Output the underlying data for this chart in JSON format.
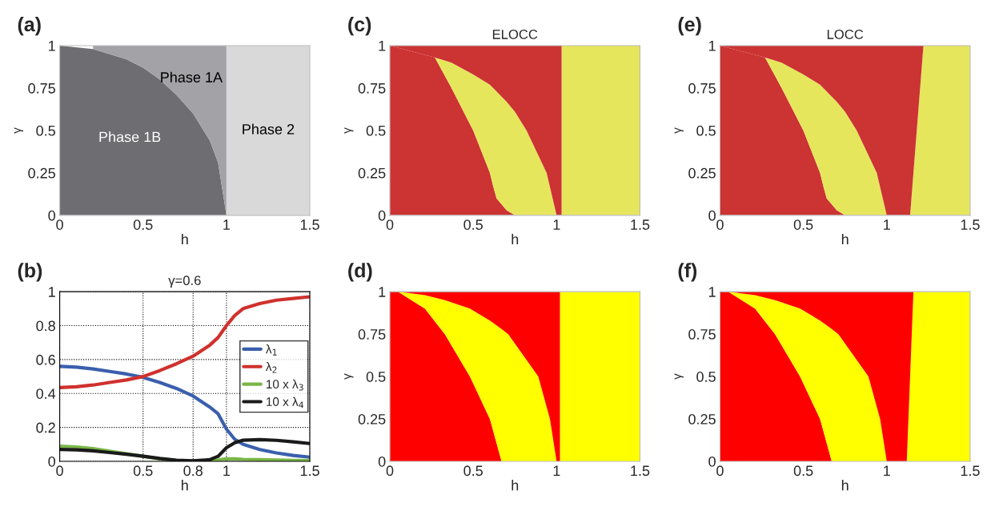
{
  "chart_data": [
    {
      "type": "area",
      "stacked": true,
      "annotations": [
        "(a)"
      ],
      "xlabel": "h",
      "ylabel": "γ",
      "xlim": [
        0,
        1.5
      ],
      "ylim": [
        0,
        1
      ],
      "xticks": [
        0,
        0.5,
        1,
        1.5
      ],
      "yticks": [
        0,
        0.25,
        0.5,
        0.75,
        1
      ],
      "grid": false,
      "legend": false,
      "x": [
        0,
        0.2,
        0.4,
        0.5,
        0.6,
        0.7,
        0.8,
        0.9,
        0.95,
        1.0,
        1.0,
        1.5
      ],
      "series": [
        {
          "name": "Phase 1B",
          "color": "#6e6d72",
          "values": [
            1,
            0.98,
            0.92,
            0.87,
            0.8,
            0.71,
            0.6,
            0.44,
            0.31,
            0,
            null,
            null
          ]
        },
        {
          "name": "Phase 1A",
          "color": "#a3a2a7",
          "values": [
            null,
            0.02,
            0.08,
            0.13,
            0.2,
            0.29,
            0.4,
            0.56,
            0.69,
            1,
            null,
            null
          ]
        },
        {
          "name": "Phase 2",
          "color": "#d9d9d9",
          "values": [
            null,
            null,
            null,
            null,
            null,
            null,
            null,
            null,
            null,
            null,
            1,
            1
          ]
        }
      ]
    },
    {
      "type": "area",
      "stacked": true,
      "title": "ELOCC",
      "annotations": [
        "(c)"
      ],
      "xlabel": "h",
      "ylabel": "γ",
      "xlim": [
        0,
        1.5
      ],
      "ylim": [
        0,
        1
      ],
      "xticks": [
        0,
        0.5,
        1,
        1.5
      ],
      "yticks": [
        0,
        0.25,
        0.5,
        0.75,
        1
      ],
      "grid": false,
      "legend": false,
      "x": [
        0,
        0.27,
        0.37,
        0.5,
        0.6,
        0.62,
        0.64,
        0.7,
        0.75,
        0.82,
        0.94,
        1.0,
        1.03,
        1.03,
        1.5
      ],
      "series": [
        {
          "color": "#cc3333",
          "values": [
            1,
            0.93,
            0.75,
            0.5,
            0.25,
            0.17,
            0.1,
            0.03,
            0,
            null,
            null,
            null,
            null,
            null,
            null
          ]
        },
        {
          "color": "#e6e65c",
          "values": [
            null,
            0,
            0.15,
            0.33,
            0.52,
            0.58,
            0.63,
            0.64,
            0.61,
            0.5,
            0.25,
            0,
            null,
            null,
            null
          ]
        },
        {
          "color": "#e6e65c",
          "values": [
            null,
            null,
            null,
            null,
            null,
            null,
            null,
            null,
            null,
            null,
            null,
            null,
            null,
            1,
            1
          ]
        },
        {
          "color": "#cc3333",
          "values": [
            0,
            0.07,
            0.1,
            0.17,
            0.23,
            0.25,
            0.27,
            0.33,
            0.39,
            0.5,
            0.75,
            1,
            1,
            null,
            null
          ]
        }
      ]
    },
    {
      "type": "area",
      "stacked": true,
      "title": "LOCC",
      "annotations": [
        "(e)"
      ],
      "xlabel": "h",
      "ylabel": "γ",
      "xlim": [
        0,
        1.5
      ],
      "ylim": [
        0,
        1
      ],
      "xticks": [
        0,
        0.5,
        1,
        1.5
      ],
      "yticks": [
        0,
        0.25,
        0.5,
        0.75,
        1
      ],
      "grid": false,
      "legend": false,
      "x": [
        0,
        0.27,
        0.37,
        0.5,
        0.6,
        0.62,
        0.64,
        0.7,
        0.75,
        0.82,
        0.94,
        1.0,
        1.14,
        1.22,
        1.5
      ],
      "series": [
        {
          "color": "#cc3333",
          "values": [
            1,
            0.93,
            0.75,
            0.5,
            0.25,
            0.17,
            0.1,
            0.03,
            0,
            null,
            null,
            null,
            null,
            null,
            null
          ]
        },
        {
          "color": "#e6e65c",
          "values": [
            null,
            0,
            0.15,
            0.33,
            0.52,
            0.58,
            0.63,
            0.64,
            0.61,
            0.5,
            0.25,
            0,
            null,
            null,
            null
          ]
        },
        {
          "color": "#e6e65c",
          "values": [
            null,
            null,
            null,
            null,
            null,
            null,
            null,
            null,
            null,
            null,
            null,
            null,
            0,
            1,
            1
          ]
        },
        {
          "color": "#cc3333",
          "values": [
            0,
            0.07,
            0.1,
            0.17,
            0.23,
            0.25,
            0.27,
            0.33,
            0.39,
            0.5,
            0.75,
            1,
            1,
            0,
            null
          ]
        }
      ]
    },
    {
      "type": "line",
      "title": "γ=0.6",
      "annotations": [
        "(b)"
      ],
      "xlabel": "h",
      "xlim": [
        0,
        1.5
      ],
      "ylim": [
        0,
        1
      ],
      "xticks": [
        0,
        0.5,
        0.8,
        1,
        1.5
      ],
      "yticks": [
        0,
        0.2,
        0.4,
        0.6,
        0.8,
        1
      ],
      "grid": true,
      "legend": "right",
      "line_style": "solid",
      "marker": "none",
      "x": [
        0,
        0.1,
        0.2,
        0.3,
        0.4,
        0.5,
        0.6,
        0.7,
        0.8,
        0.9,
        0.95,
        1.0,
        1.05,
        1.1,
        1.2,
        1.3,
        1.4,
        1.5
      ],
      "series": [
        {
          "name": "λ$_{1}$",
          "color": "#3a5fad",
          "values": [
            0.56,
            0.555,
            0.545,
            0.53,
            0.515,
            0.495,
            0.465,
            0.43,
            0.385,
            0.32,
            0.28,
            0.19,
            0.13,
            0.1,
            0.07,
            0.05,
            0.035,
            0.025
          ]
        },
        {
          "name": "λ$_{2}$",
          "color": "#d0312d",
          "values": [
            0.435,
            0.44,
            0.45,
            0.465,
            0.48,
            0.5,
            0.535,
            0.575,
            0.62,
            0.685,
            0.73,
            0.8,
            0.86,
            0.9,
            0.93,
            0.95,
            0.96,
            0.97
          ]
        },
        {
          "name": "10 x λ$_{3}$",
          "color": "#7ab648",
          "values": [
            0.09,
            0.085,
            0.075,
            0.06,
            0.045,
            0.03,
            0.015,
            0.005,
            0.002,
            0.003,
            0.008,
            0.015,
            0.015,
            0.012,
            0.01,
            0.008,
            0.006,
            0.005
          ]
        },
        {
          "name": "10 x λ$_{4}$",
          "color": "#1a1a1a",
          "values": [
            0.07,
            0.068,
            0.062,
            0.052,
            0.042,
            0.03,
            0.017,
            0.007,
            0.003,
            0.01,
            0.03,
            0.08,
            0.11,
            0.125,
            0.128,
            0.124,
            0.115,
            0.105
          ]
        }
      ]
    },
    {
      "type": "area",
      "stacked": true,
      "annotations": [
        "(d)"
      ],
      "xlabel": "h",
      "ylabel": "γ",
      "xlim": [
        0,
        1.5
      ],
      "ylim": [
        0,
        1
      ],
      "xticks": [
        0,
        0.5,
        1,
        1.5
      ],
      "yticks": [
        0,
        0.25,
        0.5,
        0.75,
        1
      ],
      "grid": false,
      "legend": false,
      "x": [
        0,
        0.05,
        0.21,
        0.33,
        0.48,
        0.6,
        0.67,
        0.71,
        0.89,
        0.96,
        1.0,
        1.02,
        1.02,
        1.5
      ],
      "series": [
        {
          "color": "#ff0000",
          "values": [
            1,
            1,
            0.9,
            0.75,
            0.5,
            0.25,
            0,
            null,
            null,
            null,
            null,
            null,
            null,
            null
          ]
        },
        {
          "color": "#ffff00",
          "values": [
            null,
            0,
            0.08,
            0.2,
            0.4,
            0.58,
            0.78,
            0.75,
            0.5,
            0.25,
            0,
            null,
            null,
            null
          ]
        },
        {
          "color": "#ffff00",
          "values": [
            null,
            null,
            null,
            null,
            null,
            null,
            null,
            null,
            null,
            null,
            null,
            null,
            1,
            1
          ]
        },
        {
          "color": "#ff0000",
          "values": [
            0,
            0,
            0.02,
            0.05,
            0.1,
            0.17,
            0.22,
            0.25,
            0.5,
            0.75,
            1,
            1,
            null,
            null
          ]
        }
      ]
    },
    {
      "type": "area",
      "stacked": true,
      "annotations": [
        "(f)"
      ],
      "xlabel": "h",
      "ylabel": "γ",
      "xlim": [
        0,
        1.5
      ],
      "ylim": [
        0,
        1
      ],
      "xticks": [
        0,
        0.5,
        1,
        1.5
      ],
      "yticks": [
        0,
        0.25,
        0.5,
        0.75,
        1
      ],
      "grid": false,
      "legend": false,
      "x": [
        0,
        0.05,
        0.21,
        0.33,
        0.48,
        0.6,
        0.67,
        0.71,
        0.89,
        0.96,
        1.0,
        1.12,
        1.16,
        1.5
      ],
      "series": [
        {
          "color": "#ff0000",
          "values": [
            1,
            1,
            0.9,
            0.75,
            0.5,
            0.25,
            0,
            null,
            null,
            null,
            null,
            null,
            null,
            null
          ]
        },
        {
          "color": "#ffff00",
          "values": [
            null,
            0,
            0.08,
            0.2,
            0.4,
            0.58,
            0.78,
            0.75,
            0.5,
            0.25,
            0,
            null,
            null,
            null
          ]
        },
        {
          "color": "#ffff00",
          "values": [
            null,
            null,
            null,
            null,
            null,
            null,
            null,
            null,
            null,
            null,
            null,
            0,
            1,
            1
          ]
        },
        {
          "color": "#ff0000",
          "values": [
            0,
            0,
            0.02,
            0.05,
            0.1,
            0.17,
            0.22,
            0.25,
            0.5,
            0.75,
            1,
            1,
            0,
            null
          ]
        }
      ]
    }
  ]
}
